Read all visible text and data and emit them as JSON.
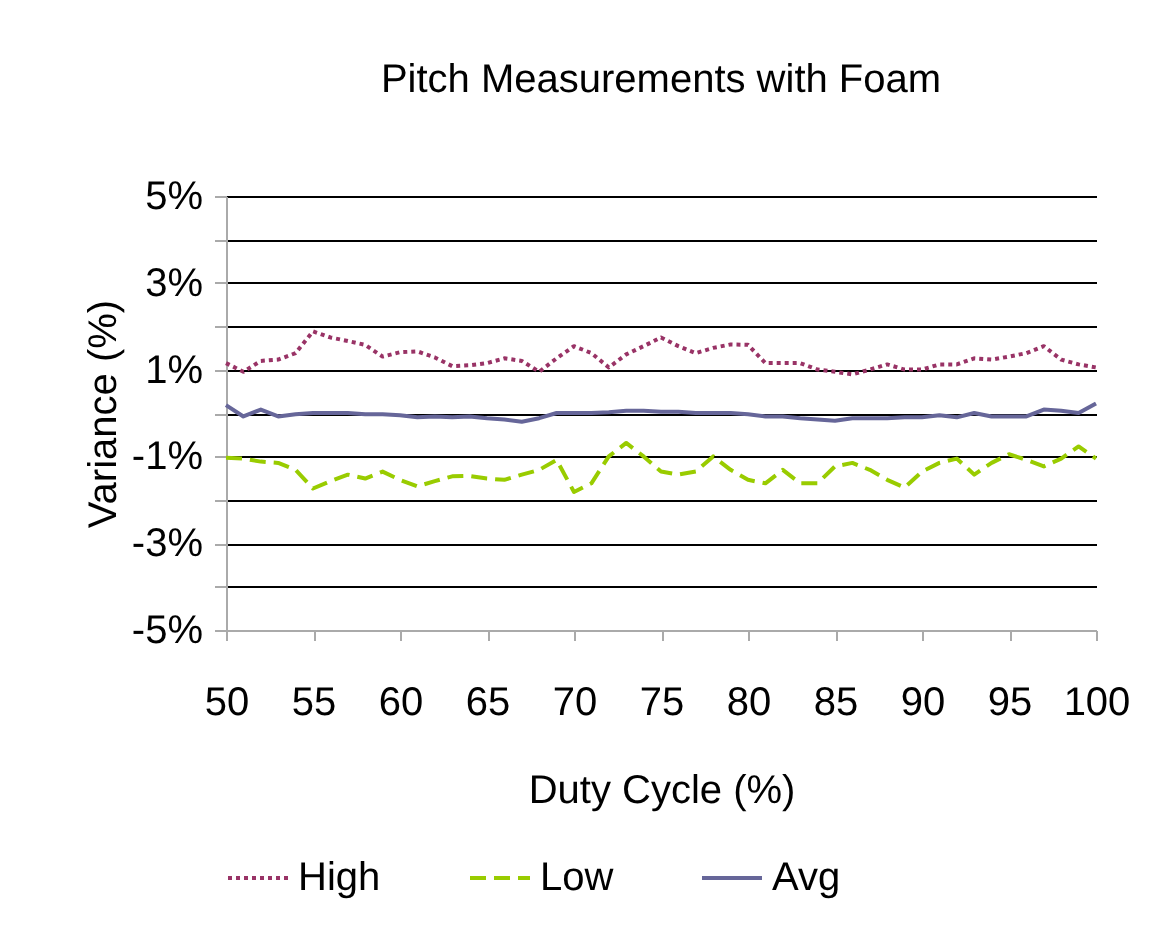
{
  "chart_data": {
    "type": "line",
    "title": "Pitch Measurements with Foam",
    "xlabel": "Duty Cycle (%)",
    "ylabel": "Variance (%)",
    "x": [
      50,
      51,
      52,
      53,
      54,
      55,
      56,
      57,
      58,
      59,
      60,
      61,
      62,
      63,
      64,
      65,
      66,
      67,
      68,
      69,
      70,
      71,
      72,
      73,
      74,
      75,
      76,
      77,
      78,
      79,
      80,
      81,
      82,
      83,
      84,
      85,
      86,
      87,
      88,
      89,
      90,
      91,
      92,
      93,
      94,
      95,
      96,
      97,
      98,
      99,
      100
    ],
    "series": [
      {
        "name": "High",
        "color": "#993366",
        "line_style": "dotted",
        "values": [
          1.15,
          0.95,
          1.2,
          1.23,
          1.38,
          1.88,
          1.74,
          1.66,
          1.57,
          1.3,
          1.4,
          1.42,
          1.28,
          1.08,
          1.1,
          1.15,
          1.26,
          1.2,
          0.95,
          1.26,
          1.54,
          1.38,
          1.05,
          1.35,
          1.54,
          1.74,
          1.54,
          1.38,
          1.5,
          1.58,
          1.57,
          1.15,
          1.15,
          1.15,
          1.0,
          0.95,
          0.89,
          1.0,
          1.12,
          1.0,
          1.0,
          1.12,
          1.12,
          1.26,
          1.23,
          1.3,
          1.38,
          1.54,
          1.23,
          1.12,
          1.05
        ]
      },
      {
        "name": "Low",
        "color": "#99cc00",
        "line_style": "dashed",
        "values": [
          -1.03,
          -1.05,
          -1.12,
          -1.15,
          -1.31,
          -1.74,
          -1.57,
          -1.42,
          -1.51,
          -1.35,
          -1.54,
          -1.69,
          -1.57,
          -1.46,
          -1.45,
          -1.51,
          -1.54,
          -1.42,
          -1.31,
          -1.08,
          -1.82,
          -1.62,
          -1.0,
          -0.69,
          -1.0,
          -1.35,
          -1.42,
          -1.35,
          -1.0,
          -1.31,
          -1.54,
          -1.62,
          -1.31,
          -1.62,
          -1.62,
          -1.23,
          -1.15,
          -1.31,
          -1.54,
          -1.72,
          -1.35,
          -1.15,
          -1.05,
          -1.42,
          -1.15,
          -0.95,
          -1.08,
          -1.23,
          -1.05,
          -0.77,
          -1.05
        ]
      },
      {
        "name": "Avg",
        "color": "#666699",
        "line_style": "solid",
        "values": [
          0.18,
          -0.08,
          0.08,
          -0.08,
          -0.03,
          0.0,
          0.0,
          0.0,
          -0.03,
          -0.03,
          -0.05,
          -0.1,
          -0.08,
          -0.1,
          -0.08,
          -0.12,
          -0.15,
          -0.2,
          -0.12,
          0.0,
          0.0,
          0.0,
          0.02,
          0.05,
          0.05,
          0.03,
          0.03,
          0.0,
          0.0,
          0.0,
          -0.03,
          -0.08,
          -0.08,
          -0.12,
          -0.15,
          -0.18,
          -0.12,
          -0.12,
          -0.12,
          -0.1,
          -0.1,
          -0.05,
          -0.1,
          0.0,
          -0.08,
          -0.08,
          -0.08,
          0.08,
          0.05,
          0.0,
          0.22
        ]
      }
    ],
    "xlim": [
      50,
      100
    ],
    "xticks": [
      50,
      55,
      60,
      65,
      70,
      75,
      80,
      85,
      90,
      95,
      100
    ],
    "ylim": [
      -5,
      5
    ],
    "yticks": [
      {
        "value": -5,
        "label": "-5%"
      },
      {
        "value": -4,
        "label": null
      },
      {
        "value": -3,
        "label": "-3%"
      },
      {
        "value": -2,
        "label": null
      },
      {
        "value": -1,
        "label": "-1%"
      },
      {
        "value": 0,
        "label": null
      },
      {
        "value": 1,
        "label": "1%"
      },
      {
        "value": 2,
        "label": null
      },
      {
        "value": 3,
        "label": "3%"
      },
      {
        "value": 4,
        "label": null
      },
      {
        "value": 5,
        "label": "5%"
      }
    ],
    "grid": "y",
    "legend": "bottom"
  }
}
